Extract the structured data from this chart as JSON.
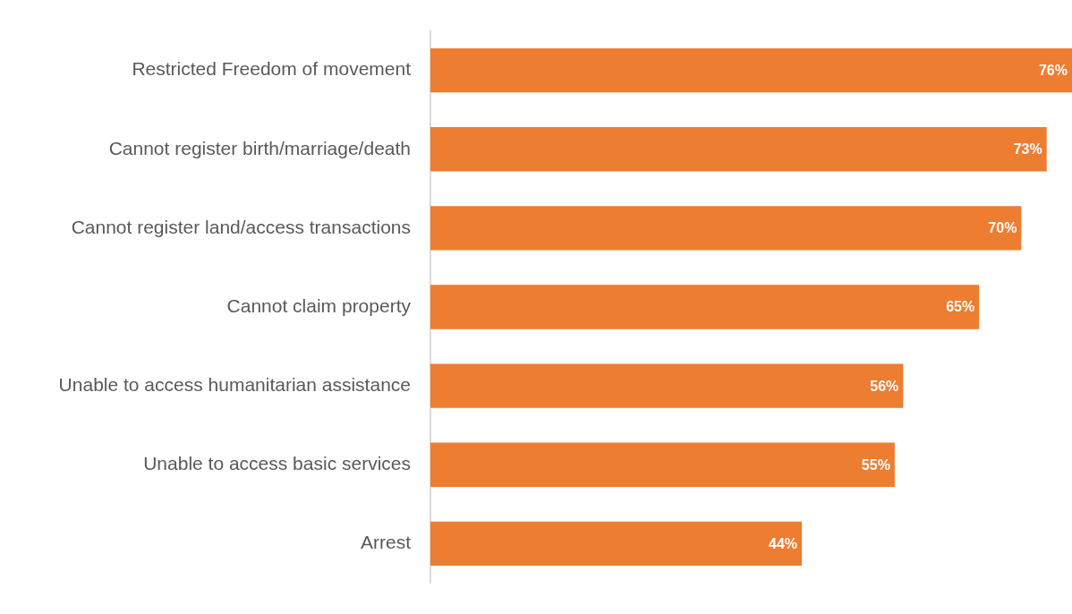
{
  "chart_data": {
    "type": "bar",
    "orientation": "horizontal",
    "categories": [
      "Restricted Freedom of movement",
      "Cannot register birth/marriage/death",
      "Cannot register land/access transactions",
      "Cannot claim property",
      "Unable to access humanitarian assistance",
      "Unable to access basic services",
      "Arrest"
    ],
    "values": [
      76,
      73,
      70,
      65,
      56,
      55,
      44
    ],
    "value_labels": [
      "76%",
      "73%",
      "70%",
      "65%",
      "56%",
      "55%",
      "44%"
    ],
    "color": "#ed7d31",
    "xlim": [
      0,
      76
    ],
    "tick_labels": "y",
    "grid": false,
    "legend": false
  }
}
